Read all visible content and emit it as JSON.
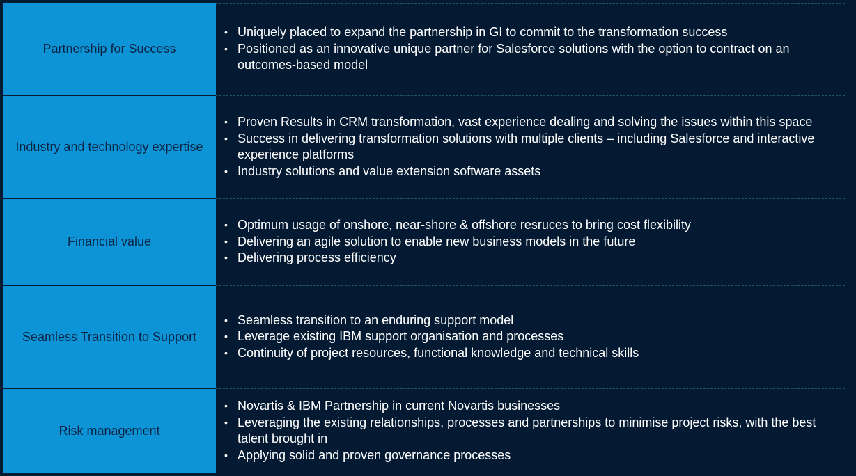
{
  "rows": [
    {
      "label": "Partnership for Success",
      "bullets": [
        "Uniquely placed to expand the partnership in GI  to commit to the transformation success",
        "Positioned as an innovative unique partner for Salesforce solutions with the option to contract on an outcomes-based model"
      ]
    },
    {
      "label": "Industry and technology expertise",
      "bullets": [
        "Proven Results in CRM transformation, vast experience dealing and solving the issues  within this space",
        "Success in delivering transformation solutions with multiple clients – including Salesforce and interactive experience platforms",
        "Industry solutions and value extension software assets"
      ]
    },
    {
      "label": "Financial value",
      "bullets": [
        "Optimum usage of onshore, near-shore & offshore resruces to bring cost flexibility",
        "Delivering an agile solution to enable new business models in the future",
        "Delivering process efficiency"
      ]
    },
    {
      "label": "Seamless Transition to Support",
      "bullets": [
        "Seamless transition to an enduring support model",
        "Leverage existing IBM support organisation and processes",
        "Continuity of project resources, functional knowledge and technical skills"
      ]
    },
    {
      "label": "Risk management",
      "bullets": [
        "Novartis & IBM Partnership in current Novartis businesses",
        "Leveraging the existing relationships, processes and partnerships to minimise project risks, with the best talent brought in",
        "Applying solid and proven governance processes"
      ]
    }
  ],
  "bullet_glyph": "•",
  "colors": {
    "background": "#041a33",
    "label_fill": "#0d94d6",
    "label_text": "#0b2444",
    "body_text": "#ffffff"
  }
}
